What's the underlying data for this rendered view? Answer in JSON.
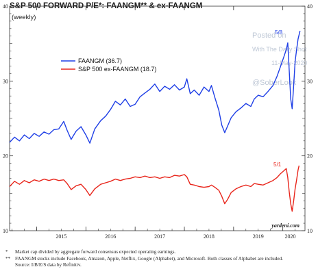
{
  "chart_data": {
    "type": "line",
    "title": "S&P 500 FORWARD P/E*: FAANGM** & ex-FAANGM",
    "subtitle": "(weekly)",
    "xlabel": "",
    "ylabel": "",
    "ylim": [
      10,
      40
    ],
    "yticks": [
      10,
      20,
      30,
      40
    ],
    "xlim": [
      2014.45,
      2020.45
    ],
    "xtick_labels": [
      "2015",
      "2016",
      "2017",
      "2018",
      "2019",
      "2020"
    ],
    "grid": false,
    "legend_position": "upper-left",
    "source_credit": "yardeni.com",
    "watermark": [
      "Posted on",
      "With The Daily Shot",
      "11-May-2020",
      "@SoberLook"
    ],
    "series": [
      {
        "name": "FAANGM (36.7)",
        "color": "#1f3fe6",
        "end_label": "5/8",
        "points": [
          [
            2014.45,
            21.8
          ],
          [
            2014.55,
            22.5
          ],
          [
            2014.65,
            22.0
          ],
          [
            2014.75,
            22.8
          ],
          [
            2014.85,
            22.3
          ],
          [
            2014.95,
            23.0
          ],
          [
            2015.05,
            22.6
          ],
          [
            2015.15,
            23.2
          ],
          [
            2015.25,
            22.9
          ],
          [
            2015.35,
            23.5
          ],
          [
            2015.45,
            23.6
          ],
          [
            2015.55,
            24.6
          ],
          [
            2015.62,
            23.4
          ],
          [
            2015.7,
            22.2
          ],
          [
            2015.8,
            23.3
          ],
          [
            2015.9,
            23.9
          ],
          [
            2016.0,
            22.8
          ],
          [
            2016.08,
            21.7
          ],
          [
            2016.18,
            23.6
          ],
          [
            2016.3,
            24.7
          ],
          [
            2016.4,
            25.3
          ],
          [
            2016.5,
            26.2
          ],
          [
            2016.6,
            27.3
          ],
          [
            2016.7,
            26.8
          ],
          [
            2016.8,
            27.6
          ],
          [
            2016.9,
            26.6
          ],
          [
            2017.0,
            26.9
          ],
          [
            2017.1,
            27.9
          ],
          [
            2017.2,
            28.4
          ],
          [
            2017.3,
            28.9
          ],
          [
            2017.4,
            29.6
          ],
          [
            2017.5,
            28.6
          ],
          [
            2017.6,
            29.3
          ],
          [
            2017.7,
            28.9
          ],
          [
            2017.8,
            29.5
          ],
          [
            2017.9,
            28.8
          ],
          [
            2018.0,
            29.2
          ],
          [
            2018.05,
            30.3
          ],
          [
            2018.12,
            28.3
          ],
          [
            2018.2,
            28.8
          ],
          [
            2018.3,
            28.1
          ],
          [
            2018.4,
            29.2
          ],
          [
            2018.5,
            28.6
          ],
          [
            2018.55,
            29.4
          ],
          [
            2018.62,
            27.8
          ],
          [
            2018.7,
            26.1
          ],
          [
            2018.76,
            24.1
          ],
          [
            2018.82,
            23.1
          ],
          [
            2018.88,
            24.0
          ],
          [
            2018.95,
            25.1
          ],
          [
            2019.05,
            25.9
          ],
          [
            2019.15,
            26.4
          ],
          [
            2019.25,
            27.0
          ],
          [
            2019.35,
            26.6
          ],
          [
            2019.42,
            27.6
          ],
          [
            2019.5,
            28.1
          ],
          [
            2019.6,
            27.9
          ],
          [
            2019.7,
            28.6
          ],
          [
            2019.8,
            29.4
          ],
          [
            2019.88,
            30.6
          ],
          [
            2019.95,
            31.9
          ],
          [
            2020.02,
            33.2
          ],
          [
            2020.07,
            34.2
          ],
          [
            2020.1,
            35.1
          ],
          [
            2020.13,
            31.4
          ],
          [
            2020.16,
            27.6
          ],
          [
            2020.19,
            26.3
          ],
          [
            2020.22,
            29.4
          ],
          [
            2020.25,
            32.6
          ],
          [
            2020.28,
            34.2
          ],
          [
            2020.31,
            35.6
          ],
          [
            2020.35,
            36.7
          ]
        ]
      },
      {
        "name": "S&P 500 ex-FAANGM (18.7)",
        "color": "#e8251b",
        "end_label": "5/1",
        "points": [
          [
            2014.45,
            15.9
          ],
          [
            2014.55,
            16.6
          ],
          [
            2014.65,
            16.2
          ],
          [
            2014.75,
            16.7
          ],
          [
            2014.85,
            16.4
          ],
          [
            2014.95,
            16.8
          ],
          [
            2015.05,
            16.6
          ],
          [
            2015.15,
            16.9
          ],
          [
            2015.25,
            16.7
          ],
          [
            2015.35,
            16.9
          ],
          [
            2015.45,
            16.7
          ],
          [
            2015.55,
            16.8
          ],
          [
            2015.62,
            16.3
          ],
          [
            2015.7,
            15.5
          ],
          [
            2015.8,
            16.0
          ],
          [
            2015.9,
            16.2
          ],
          [
            2016.0,
            15.5
          ],
          [
            2016.08,
            14.7
          ],
          [
            2016.18,
            15.6
          ],
          [
            2016.3,
            16.2
          ],
          [
            2016.4,
            16.4
          ],
          [
            2016.5,
            16.6
          ],
          [
            2016.6,
            16.9
          ],
          [
            2016.7,
            16.7
          ],
          [
            2016.8,
            16.9
          ],
          [
            2016.9,
            17.0
          ],
          [
            2017.0,
            17.2
          ],
          [
            2017.1,
            17.1
          ],
          [
            2017.2,
            17.3
          ],
          [
            2017.3,
            17.1
          ],
          [
            2017.4,
            17.2
          ],
          [
            2017.5,
            17.0
          ],
          [
            2017.6,
            17.2
          ],
          [
            2017.7,
            17.1
          ],
          [
            2017.8,
            17.4
          ],
          [
            2017.9,
            17.3
          ],
          [
            2018.0,
            17.5
          ],
          [
            2018.05,
            17.2
          ],
          [
            2018.12,
            16.2
          ],
          [
            2018.2,
            16.1
          ],
          [
            2018.3,
            15.9
          ],
          [
            2018.4,
            15.8
          ],
          [
            2018.5,
            15.9
          ],
          [
            2018.55,
            16.1
          ],
          [
            2018.62,
            15.8
          ],
          [
            2018.7,
            15.4
          ],
          [
            2018.76,
            14.6
          ],
          [
            2018.82,
            13.6
          ],
          [
            2018.88,
            14.2
          ],
          [
            2018.95,
            15.1
          ],
          [
            2019.05,
            15.6
          ],
          [
            2019.15,
            15.9
          ],
          [
            2019.25,
            16.1
          ],
          [
            2019.35,
            15.9
          ],
          [
            2019.42,
            16.3
          ],
          [
            2019.5,
            16.2
          ],
          [
            2019.6,
            16.1
          ],
          [
            2019.7,
            16.4
          ],
          [
            2019.8,
            16.7
          ],
          [
            2019.88,
            17.1
          ],
          [
            2019.95,
            17.6
          ],
          [
            2020.02,
            18.0
          ],
          [
            2020.07,
            18.3
          ],
          [
            2020.1,
            17.1
          ],
          [
            2020.13,
            15.2
          ],
          [
            2020.16,
            13.6
          ],
          [
            2020.19,
            12.6
          ],
          [
            2020.22,
            14.0
          ],
          [
            2020.25,
            15.6
          ],
          [
            2020.28,
            16.8
          ],
          [
            2020.31,
            18.1
          ],
          [
            2020.33,
            18.7
          ]
        ]
      }
    ]
  },
  "footnotes": [
    {
      "mark": "*",
      "text": "Market cap divided by aggregate forward consensus expected operating earnings."
    },
    {
      "mark": "**",
      "text": "FAANGM stocks include Facebook, Amazon, Apple, Netflix, Google (Alphabet), and Microsoft. Both classes of Alphabet are included."
    },
    {
      "mark": "",
      "text": "Source: I/B/E/S data by Refinitiv."
    }
  ]
}
